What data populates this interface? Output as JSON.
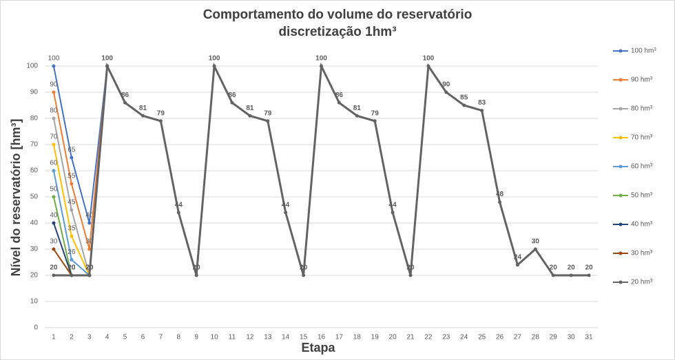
{
  "chart_data": {
    "type": "line",
    "title": [
      "Comportamento do volume do reservatório",
      "discretização 1hm³"
    ],
    "x_label": "Etapa",
    "y_label": "Nível do reservatório [hm³]",
    "categories": [
      "1",
      "2",
      "3",
      "4",
      "5",
      "6",
      "7",
      "8",
      "9",
      "10",
      "11",
      "12",
      "13",
      "14",
      "15",
      "16",
      "17",
      "18",
      "19",
      "20",
      "21",
      "22",
      "23",
      "24",
      "25",
      "26",
      "27",
      "28",
      "29",
      "30",
      "31"
    ],
    "ylim": [
      0,
      100
    ],
    "yticks": [
      0,
      10,
      20,
      30,
      40,
      50,
      60,
      70,
      80,
      90,
      100
    ],
    "grid": true,
    "legend": "right",
    "series": [
      {
        "name": "100 hm³",
        "color": "#4472c4",
        "values": [
          100,
          65,
          40,
          100,
          null,
          null,
          null,
          null,
          null,
          null,
          null,
          null,
          null,
          null,
          null,
          null,
          null,
          null,
          null,
          null,
          null,
          null,
          null,
          null,
          null,
          null,
          null,
          null,
          null,
          null,
          null
        ]
      },
      {
        "name": "90 hm³",
        "color": "#ed7d31",
        "values": [
          90,
          55,
          30,
          100,
          null,
          null,
          null,
          null,
          null,
          null,
          null,
          null,
          null,
          null,
          null,
          null,
          null,
          null,
          null,
          null,
          null,
          null,
          null,
          null,
          null,
          null,
          null,
          null,
          null,
          null,
          null
        ]
      },
      {
        "name": "80 hm³",
        "color": "#a5a5a5",
        "values": [
          80,
          45,
          20,
          100,
          null,
          null,
          null,
          null,
          null,
          null,
          null,
          null,
          null,
          null,
          null,
          null,
          null,
          null,
          null,
          null,
          null,
          null,
          null,
          null,
          null,
          null,
          null,
          null,
          null,
          null,
          null
        ]
      },
      {
        "name": "70 hm³",
        "color": "#ffc000",
        "values": [
          70,
          35,
          20,
          100,
          null,
          null,
          null,
          null,
          null,
          null,
          null,
          null,
          null,
          null,
          null,
          null,
          null,
          null,
          null,
          null,
          null,
          null,
          null,
          null,
          null,
          null,
          null,
          null,
          null,
          null,
          null
        ]
      },
      {
        "name": "60 hm³",
        "color": "#5b9bd5",
        "values": [
          60,
          26,
          20,
          100,
          null,
          null,
          null,
          null,
          null,
          null,
          null,
          null,
          null,
          null,
          null,
          null,
          null,
          null,
          null,
          null,
          null,
          null,
          null,
          null,
          null,
          null,
          null,
          null,
          null,
          null,
          null
        ]
      },
      {
        "name": "50 hm³",
        "color": "#70ad47",
        "values": [
          50,
          20,
          20,
          100,
          null,
          null,
          null,
          null,
          null,
          null,
          null,
          null,
          null,
          null,
          null,
          null,
          null,
          null,
          null,
          null,
          null,
          null,
          null,
          null,
          null,
          null,
          null,
          null,
          null,
          null,
          null
        ]
      },
      {
        "name": "40 hm³",
        "color": "#264478",
        "values": [
          40,
          20,
          20,
          100,
          null,
          null,
          null,
          null,
          null,
          null,
          null,
          null,
          null,
          null,
          null,
          null,
          null,
          null,
          null,
          null,
          null,
          null,
          null,
          null,
          null,
          null,
          null,
          null,
          null,
          null,
          null
        ]
      },
      {
        "name": "30 hm³",
        "color": "#9e480e",
        "values": [
          30,
          20,
          20,
          100,
          null,
          null,
          null,
          null,
          null,
          null,
          null,
          null,
          null,
          null,
          null,
          null,
          null,
          null,
          null,
          null,
          null,
          null,
          null,
          null,
          null,
          null,
          null,
          null,
          null,
          null,
          null
        ]
      },
      {
        "name": "20 hm³",
        "color": "#636363",
        "values": [
          20,
          20,
          20,
          100,
          86,
          81,
          79,
          44,
          20,
          100,
          86,
          81,
          79,
          44,
          20,
          100,
          86,
          81,
          79,
          44,
          20,
          100,
          90,
          85,
          83,
          48,
          24,
          30,
          20,
          20,
          20
        ]
      }
    ]
  }
}
